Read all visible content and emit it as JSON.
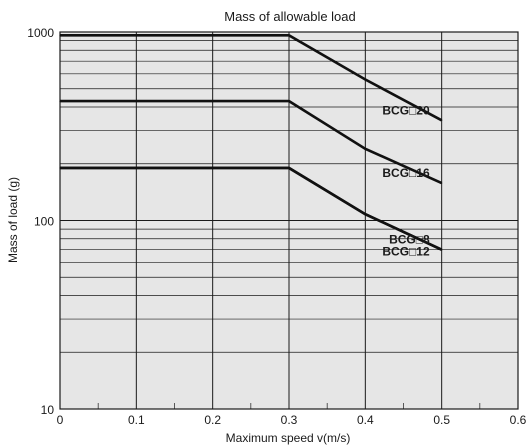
{
  "chart_data": {
    "type": "line",
    "title": "Mass of allowable load",
    "xlabel": "Maximum speed v(m/s)",
    "ylabel": "Mass of load (g)",
    "xlim": [
      0,
      0.6
    ],
    "ylim": [
      10,
      1000
    ],
    "yscale": "log",
    "grid": true,
    "x_ticks": [
      "0",
      "0.1",
      "0.2",
      "0.3",
      "0.4",
      "0.5",
      "0.6"
    ],
    "y_ticks": [
      "10",
      "100",
      "1000"
    ],
    "legend": "inline-right",
    "series": [
      {
        "name": "BCG□20",
        "x": [
          0,
          0.3,
          0.4,
          0.5
        ],
        "y": [
          960,
          960,
          560,
          340
        ]
      },
      {
        "name": "BCG□16",
        "x": [
          0,
          0.3,
          0.4,
          0.5
        ],
        "y": [
          430,
          430,
          240,
          158
        ]
      },
      {
        "name": "BCG□8",
        "x": [
          0,
          0.3,
          0.4,
          0.5
        ],
        "y": [
          190,
          190,
          108,
          70
        ]
      },
      {
        "name": "BCG□12",
        "x": [
          0,
          0.3,
          0.4,
          0.5
        ],
        "y": [
          190,
          190,
          108,
          70
        ]
      }
    ]
  }
}
